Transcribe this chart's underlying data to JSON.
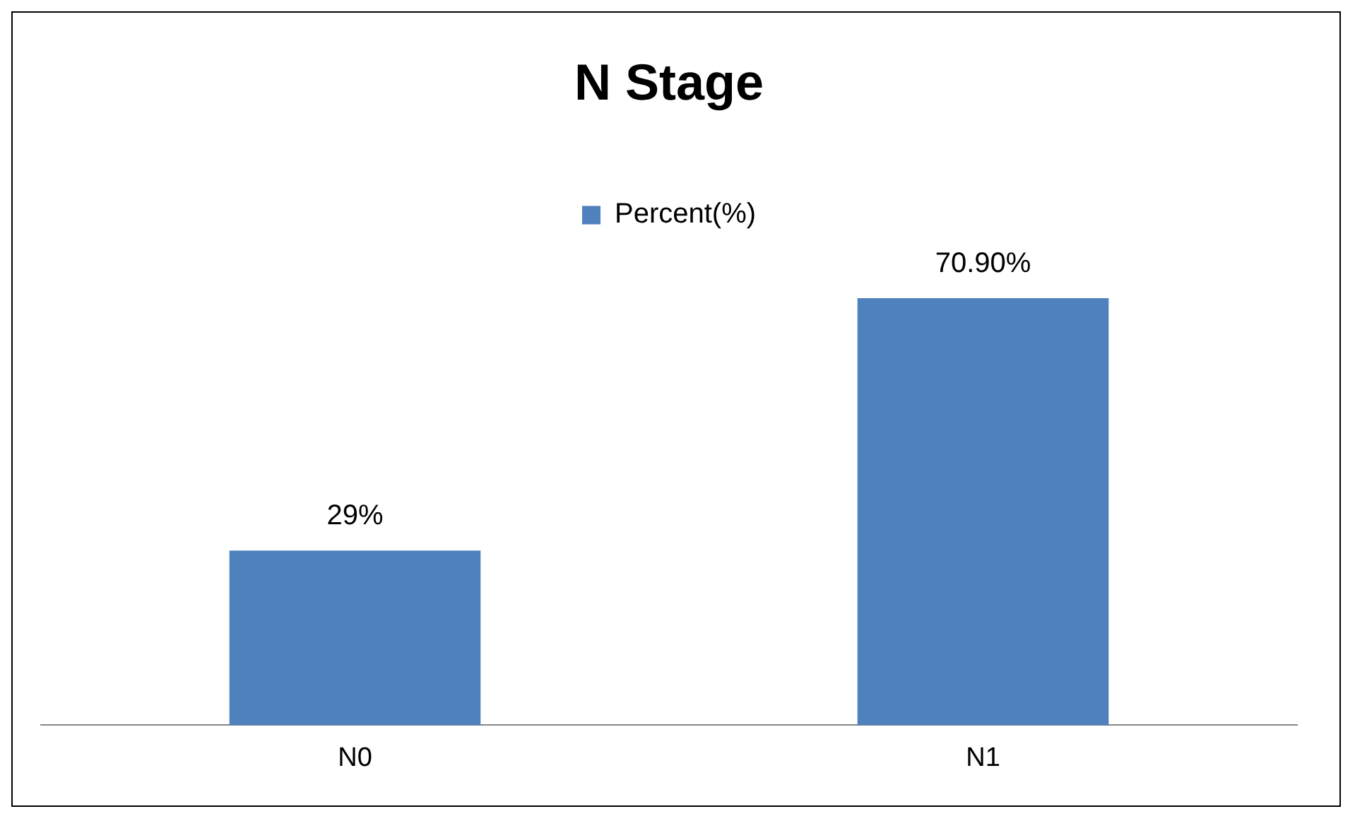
{
  "chart_data": {
    "type": "bar",
    "title": "N Stage",
    "categories": [
      "N0",
      "N1"
    ],
    "series": [
      {
        "name": "Percent(%)",
        "color": "#4f81bd",
        "values": [
          29,
          70.9
        ],
        "value_labels": [
          "29%",
          "70.90%"
        ]
      }
    ],
    "legend": "top",
    "grid": false
  }
}
